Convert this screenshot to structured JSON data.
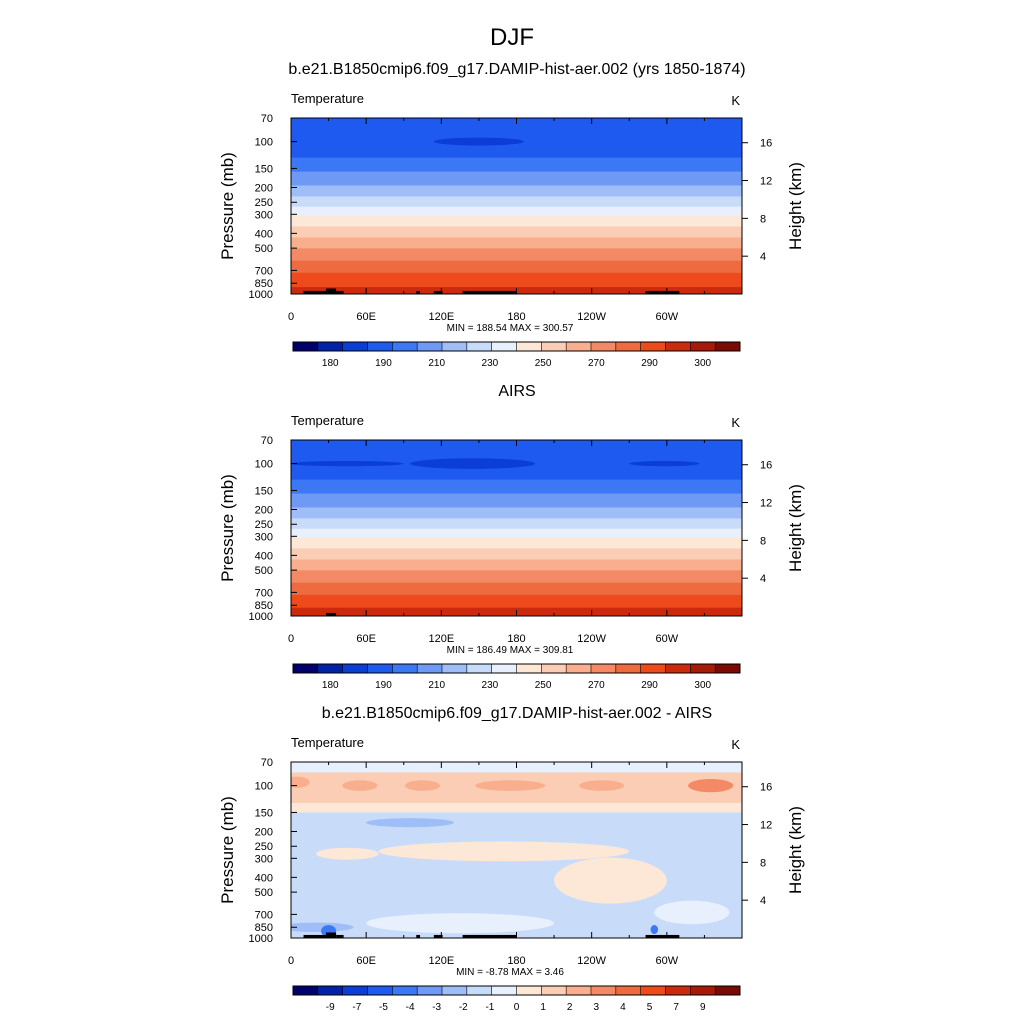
{
  "page_title": "DJF",
  "chart_data": [
    {
      "type": "heatmap",
      "title": "b.e21.B1850cmip6.f09_g17.DAMIP-hist-aer.002 (yrs 1850-1874)",
      "variable": "Temperature",
      "units": "K",
      "ylabel": "Pressure (mb)",
      "ylabel_right": "Height (km)",
      "x_ticks": [
        "0",
        "60E",
        "120E",
        "180",
        "120W",
        "60W"
      ],
      "x_range": [
        0,
        360
      ],
      "y_ticks": [
        "70",
        "100",
        "150",
        "200",
        "250",
        "300",
        "400",
        "500",
        "700",
        "850",
        "1000"
      ],
      "y_range": [
        70,
        1000
      ],
      "height_ticks": [
        "16",
        "12",
        "8",
        "4"
      ],
      "stats": "MIN = 188.54  MAX = 300.57",
      "colorbar_labels": [
        "180",
        "190",
        "210",
        "230",
        "250",
        "270",
        "290",
        "300"
      ],
      "levels": [
        175,
        180,
        185,
        190,
        200,
        210,
        220,
        230,
        240,
        250,
        260,
        270,
        280,
        290,
        295,
        300
      ],
      "colors": [
        "#00006b",
        "#0022a8",
        "#0a3ed6",
        "#1e5af0",
        "#3c78f5",
        "#6e9af5",
        "#9fbef7",
        "#c8dcfa",
        "#e7f0fc",
        "#fde8d8",
        "#fbcdb5",
        "#f9ae8e",
        "#f48a65",
        "#ee6a3f",
        "#ef4a1c",
        "#cc2a0c",
        "#a81a08",
        "#7a0a04"
      ],
      "bands": [
        {
          "p_top": 70,
          "p_bottom": 128,
          "color": "#1e5af0"
        },
        {
          "p_top": 128,
          "p_bottom": 158,
          "color": "#3c78f5"
        },
        {
          "p_top": 158,
          "p_bottom": 195,
          "color": "#6e9af5"
        },
        {
          "p_top": 195,
          "p_bottom": 230,
          "color": "#9fbef7"
        },
        {
          "p_top": 230,
          "p_bottom": 268,
          "color": "#c8dcfa"
        },
        {
          "p_top": 268,
          "p_bottom": 305,
          "color": "#e7f0fc"
        },
        {
          "p_top": 305,
          "p_bottom": 360,
          "color": "#fde8d8"
        },
        {
          "p_top": 360,
          "p_bottom": 425,
          "color": "#fbcdb5"
        },
        {
          "p_top": 425,
          "p_bottom": 500,
          "color": "#f9ae8e"
        },
        {
          "p_top": 500,
          "p_bottom": 600,
          "color": "#f48a65"
        },
        {
          "p_top": 600,
          "p_bottom": 720,
          "color": "#ee6a3f"
        },
        {
          "p_top": 720,
          "p_bottom": 900,
          "color": "#ef4a1c"
        },
        {
          "p_top": 900,
          "p_bottom": 1000,
          "color": "#cc2a0c"
        }
      ],
      "blobs": [
        {
          "lon": 150,
          "p": 100,
          "lon_half": 36,
          "p_half": 6,
          "color": "#0a3ed6"
        }
      ],
      "terrain": [
        {
          "lon0": 10,
          "lon1": 30,
          "p_top": 955
        },
        {
          "lon0": 28,
          "lon1": 36,
          "p_top": 920
        },
        {
          "lon0": 36,
          "lon1": 42,
          "p_top": 955
        },
        {
          "lon0": 100,
          "lon1": 103,
          "p_top": 955
        },
        {
          "lon0": 114,
          "lon1": 121,
          "p_top": 955
        },
        {
          "lon0": 137,
          "lon1": 180,
          "p_top": 955
        },
        {
          "lon0": 283,
          "lon1": 310,
          "p_top": 955
        }
      ]
    },
    {
      "type": "heatmap",
      "title": "AIRS",
      "variable": "Temperature",
      "units": "K",
      "ylabel": "Pressure (mb)",
      "ylabel_right": "Height (km)",
      "x_ticks": [
        "0",
        "60E",
        "120E",
        "180",
        "120W",
        "60W"
      ],
      "x_range": [
        0,
        360
      ],
      "y_ticks": [
        "70",
        "100",
        "150",
        "200",
        "250",
        "300",
        "400",
        "500",
        "700",
        "850",
        "1000"
      ],
      "y_range": [
        70,
        1000
      ],
      "height_ticks": [
        "16",
        "12",
        "8",
        "4"
      ],
      "stats": "MIN = 186.49  MAX = 309.81",
      "colorbar_labels": [
        "180",
        "190",
        "210",
        "230",
        "250",
        "270",
        "290",
        "300"
      ],
      "levels": [
        175,
        180,
        185,
        190,
        200,
        210,
        220,
        230,
        240,
        250,
        260,
        270,
        280,
        290,
        295,
        300
      ],
      "colors": [
        "#00006b",
        "#0022a8",
        "#0a3ed6",
        "#1e5af0",
        "#3c78f5",
        "#6e9af5",
        "#9fbef7",
        "#c8dcfa",
        "#e7f0fc",
        "#fde8d8",
        "#fbcdb5",
        "#f9ae8e",
        "#f48a65",
        "#ee6a3f",
        "#ef4a1c",
        "#cc2a0c",
        "#a81a08",
        "#7a0a04"
      ],
      "bands": [
        {
          "p_top": 70,
          "p_bottom": 128,
          "color": "#1e5af0"
        },
        {
          "p_top": 128,
          "p_bottom": 158,
          "color": "#3c78f5"
        },
        {
          "p_top": 158,
          "p_bottom": 195,
          "color": "#6e9af5"
        },
        {
          "p_top": 195,
          "p_bottom": 230,
          "color": "#9fbef7"
        },
        {
          "p_top": 230,
          "p_bottom": 268,
          "color": "#c8dcfa"
        },
        {
          "p_top": 268,
          "p_bottom": 305,
          "color": "#e7f0fc"
        },
        {
          "p_top": 305,
          "p_bottom": 360,
          "color": "#fde8d8"
        },
        {
          "p_top": 360,
          "p_bottom": 425,
          "color": "#fbcdb5"
        },
        {
          "p_top": 425,
          "p_bottom": 500,
          "color": "#f9ae8e"
        },
        {
          "p_top": 500,
          "p_bottom": 600,
          "color": "#f48a65"
        },
        {
          "p_top": 600,
          "p_bottom": 720,
          "color": "#ee6a3f"
        },
        {
          "p_top": 720,
          "p_bottom": 880,
          "color": "#ef4a1c"
        },
        {
          "p_top": 880,
          "p_bottom": 1000,
          "color": "#cc2a0c"
        }
      ],
      "blobs": [
        {
          "lon": 45,
          "p": 100,
          "lon_half": 45,
          "p_half": 4,
          "color": "#0a3ed6"
        },
        {
          "lon": 145,
          "p": 100,
          "lon_half": 50,
          "p_half": 8,
          "color": "#0a3ed6"
        },
        {
          "lon": 298,
          "p": 100,
          "lon_half": 28,
          "p_half": 4,
          "color": "#0a3ed6"
        }
      ],
      "terrain": [
        {
          "lon0": 28,
          "lon1": 36,
          "p_top": 955
        }
      ]
    },
    {
      "type": "heatmap",
      "title": "b.e21.B1850cmip6.f09_g17.DAMIP-hist-aer.002 - AIRS",
      "variable": "Temperature",
      "units": "K",
      "ylabel": "Pressure (mb)",
      "ylabel_right": "Height (km)",
      "x_ticks": [
        "0",
        "60E",
        "120E",
        "180",
        "120W",
        "60W"
      ],
      "x_range": [
        0,
        360
      ],
      "y_ticks": [
        "70",
        "100",
        "150",
        "200",
        "250",
        "300",
        "400",
        "500",
        "700",
        "850",
        "1000"
      ],
      "y_range": [
        70,
        1000
      ],
      "height_ticks": [
        "16",
        "12",
        "8",
        "4"
      ],
      "stats": "MIN =  -8.78  MAX =   3.46",
      "colorbar_labels": [
        "-9",
        "-7",
        "-5",
        "-4",
        "-3",
        "-2",
        "-1",
        "0",
        "1",
        "2",
        "3",
        "4",
        "5",
        "7",
        "9"
      ],
      "levels": [
        -9,
        -8,
        -7,
        -6,
        -5,
        -4,
        -3,
        -2,
        -1,
        0,
        1,
        2,
        3,
        4,
        5,
        6,
        7,
        8,
        9
      ],
      "colors": [
        "#00006b",
        "#0022a8",
        "#0a3ed6",
        "#1e5af0",
        "#3c78f5",
        "#6e9af5",
        "#9fbef7",
        "#c8dcfa",
        "#e7f0fc",
        "#fde8d8",
        "#fbcdb5",
        "#f9ae8e",
        "#f48a65",
        "#ee6a3f",
        "#ef4a1c",
        "#cc2a0c",
        "#a81a08",
        "#7a0a04"
      ],
      "bands": [
        {
          "p_top": 70,
          "p_bottom": 82,
          "color": "#e7f0fc"
        },
        {
          "p_top": 82,
          "p_bottom": 130,
          "color": "#fbcdb5"
        },
        {
          "p_top": 130,
          "p_bottom": 150,
          "color": "#fde8d8"
        },
        {
          "p_top": 150,
          "p_bottom": 1000,
          "color": "#c8dcfa"
        }
      ],
      "blobs": [
        {
          "lon": 170,
          "p": 270,
          "lon_half": 100,
          "p_half": 40,
          "color": "#fde8d8"
        },
        {
          "lon": 255,
          "p": 420,
          "lon_half": 45,
          "p_half": 140,
          "color": "#fde8d8"
        },
        {
          "lon": 45,
          "p": 280,
          "lon_half": 25,
          "p_half": 25,
          "color": "#fde8d8"
        },
        {
          "lon": 135,
          "p": 800,
          "lon_half": 75,
          "p_half": 120,
          "color": "#e7f0fc"
        },
        {
          "lon": 320,
          "p": 680,
          "lon_half": 30,
          "p_half": 120,
          "color": "#e7f0fc"
        },
        {
          "lon": 20,
          "p": 850,
          "lon_half": 30,
          "p_half": 60,
          "color": "#9fbef7"
        },
        {
          "lon": 30,
          "p": 900,
          "lon_half": 6,
          "p_half": 80,
          "color": "#3c78f5"
        },
        {
          "lon": 290,
          "p": 880,
          "lon_half": 3,
          "p_half": 60,
          "color": "#3c78f5"
        },
        {
          "lon": 95,
          "p": 175,
          "lon_half": 35,
          "p_half": 12,
          "color": "#9fbef7"
        },
        {
          "lon": 55,
          "p": 100,
          "lon_half": 14,
          "p_half": 8,
          "color": "#f9ae8e"
        },
        {
          "lon": 105,
          "p": 100,
          "lon_half": 14,
          "p_half": 8,
          "color": "#f9ae8e"
        },
        {
          "lon": 175,
          "p": 100,
          "lon_half": 28,
          "p_half": 8,
          "color": "#f9ae8e"
        },
        {
          "lon": 248,
          "p": 100,
          "lon_half": 18,
          "p_half": 8,
          "color": "#f9ae8e"
        },
        {
          "lon": 335,
          "p": 100,
          "lon_half": 18,
          "p_half": 10,
          "color": "#f48a65"
        },
        {
          "lon": 5,
          "p": 95,
          "lon_half": 10,
          "p_half": 8,
          "color": "#f9ae8e"
        }
      ],
      "terrain": [
        {
          "lon0": 10,
          "lon1": 30,
          "p_top": 955
        },
        {
          "lon0": 28,
          "lon1": 36,
          "p_top": 920
        },
        {
          "lon0": 36,
          "lon1": 42,
          "p_top": 955
        },
        {
          "lon0": 100,
          "lon1": 103,
          "p_top": 955
        },
        {
          "lon0": 114,
          "lon1": 121,
          "p_top": 955
        },
        {
          "lon0": 137,
          "lon1": 180,
          "p_top": 955
        },
        {
          "lon0": 283,
          "lon1": 310,
          "p_top": 955
        }
      ]
    }
  ]
}
